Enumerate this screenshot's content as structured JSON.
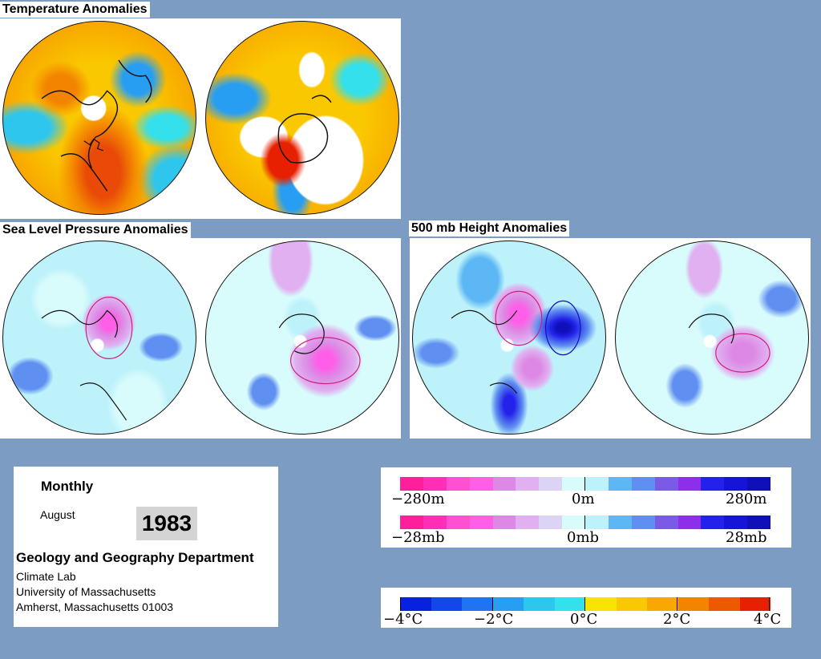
{
  "sections": {
    "temperature": "Temperature Anomalies",
    "slp": "Sea Level Pressure Anomalies",
    "height": "500 mb Height Anomalies"
  },
  "info": {
    "period": "Monthly",
    "month": "August",
    "year": "1983",
    "department": "Geology and Geography Department",
    "lab": "Climate Lab",
    "university": "University of Massachusetts",
    "address": "Amherst, Massachusetts 01003"
  },
  "legends": {
    "height": {
      "min": "−280m",
      "mid": "0m",
      "max": "280m"
    },
    "pressure": {
      "min": "−28mb",
      "mid": "0mb",
      "max": "28mb"
    },
    "temperature": [
      "−4°C",
      "−2°C",
      "0°C",
      "2°C",
      "4°C"
    ]
  },
  "colors": {
    "background": "#7d9cc4",
    "anomaly_scale": [
      "#ff1f9a",
      "#ff2fb5",
      "#ff4fd3",
      "#ff5ee8",
      "#dd88e4",
      "#e0b0f0",
      "#dcd4f4",
      "#d8fbfb",
      "#bef2fb",
      "#5cb7f4",
      "#5f8ff0",
      "#7a5be8",
      "#8d2fe8",
      "#2222ea",
      "#1515d8",
      "#1010b8"
    ],
    "temperature_scale": [
      "#0820e0",
      "#1248ea",
      "#1f74f0",
      "#289ef2",
      "#2fc6ee",
      "#33e0ec",
      "#f8e400",
      "#fac800",
      "#f8a800",
      "#f38400",
      "#ec5a00",
      "#e62000"
    ]
  }
}
